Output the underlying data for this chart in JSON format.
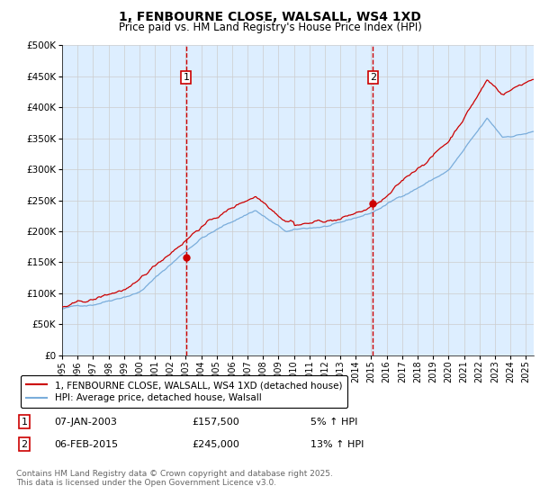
{
  "title": "1, FENBOURNE CLOSE, WALSALL, WS4 1XD",
  "subtitle": "Price paid vs. HM Land Registry's House Price Index (HPI)",
  "ytick_values": [
    0,
    50000,
    100000,
    150000,
    200000,
    250000,
    300000,
    350000,
    400000,
    450000,
    500000
  ],
  "ylim": [
    0,
    500000
  ],
  "xlim_start": 1995.0,
  "xlim_end": 2025.5,
  "red_line_color": "#cc0000",
  "blue_line_color": "#7aaddb",
  "grid_color": "#cccccc",
  "plot_bg_color": "#ddeeff",
  "marker1_year": 2003.03,
  "marker1_value": 157500,
  "marker2_year": 2015.1,
  "marker2_value": 245000,
  "marker1_date": "07-JAN-2003",
  "marker1_price": "£157,500",
  "marker1_hpi": "5% ↑ HPI",
  "marker2_date": "06-FEB-2015",
  "marker2_price": "£245,000",
  "marker2_hpi": "13% ↑ HPI",
  "legend_line1": "1, FENBOURNE CLOSE, WALSALL, WS4 1XD (detached house)",
  "legend_line2": "HPI: Average price, detached house, Walsall",
  "footer": "Contains HM Land Registry data © Crown copyright and database right 2025.\nThis data is licensed under the Open Government Licence v3.0.",
  "xtick_years": [
    1995,
    1996,
    1997,
    1998,
    1999,
    2000,
    2001,
    2002,
    2003,
    2004,
    2005,
    2006,
    2007,
    2008,
    2009,
    2010,
    2011,
    2012,
    2013,
    2014,
    2015,
    2016,
    2017,
    2018,
    2019,
    2020,
    2021,
    2022,
    2023,
    2024,
    2025
  ]
}
